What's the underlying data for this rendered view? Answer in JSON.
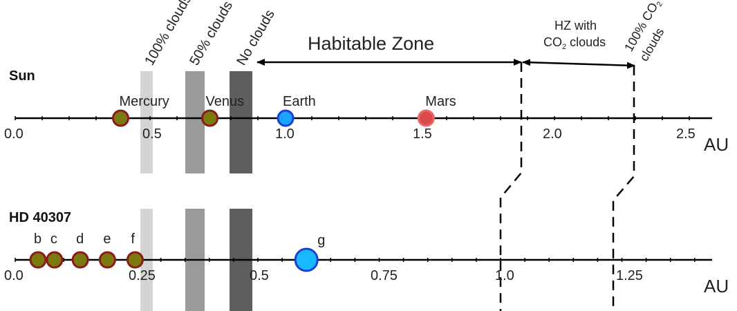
{
  "labels": {
    "cloud100": "100% clouds",
    "cloud50": "50% clouds",
    "cloud0": "No clouds",
    "hz": "Habitable Zone",
    "hzco2_line1": "HZ with",
    "hzco2_line2_a": "CO",
    "hzco2_line2_sub": "2",
    "hzco2_line2_b": " clouds",
    "co2_100_line1_a": "100% CO",
    "co2_100_line1_sub": "2",
    "co2_100_line2": "clouds",
    "unit_top": "AU",
    "unit_bottom": "AU"
  },
  "sun": {
    "name": "Sun",
    "ticks": [
      "0.0",
      "0.5",
      "1.0",
      "1.5",
      "2.0",
      "2.5"
    ],
    "planets": [
      {
        "name": "Mercury",
        "au": 0.39,
        "color": "#7a7a10",
        "stroke": "#8b1a1a",
        "size": "small"
      },
      {
        "name": "Venus",
        "au": 0.72,
        "color": "#7a7a10",
        "stroke": "#8b1a1a",
        "size": "small"
      },
      {
        "name": "Earth",
        "au": 1.0,
        "color": "#1aa3ff",
        "stroke": "#1a3fd6",
        "size": "small"
      },
      {
        "name": "Mars",
        "au": 1.52,
        "color": "#d94b4b",
        "stroke": "#e86868",
        "size": "small"
      }
    ]
  },
  "hd": {
    "name": "HD 40307",
    "ticks": [
      "0.0",
      "0.25",
      "0.5",
      "0.75",
      "1.0",
      "1.25"
    ],
    "planets": [
      {
        "name": "b",
        "au": 0.047,
        "color": "#7a7a10",
        "stroke": "#8b1a1a",
        "size": "small"
      },
      {
        "name": "c",
        "au": 0.081,
        "color": "#7a7a10",
        "stroke": "#8b1a1a",
        "size": "small"
      },
      {
        "name": "d",
        "au": 0.134,
        "color": "#7a7a10",
        "stroke": "#8b1a1a",
        "size": "small"
      },
      {
        "name": "e",
        "au": 0.19,
        "color": "#7a7a10",
        "stroke": "#8b1a1a",
        "size": "small"
      },
      {
        "name": "f",
        "au": 0.247,
        "color": "#7a7a10",
        "stroke": "#8b1a1a",
        "size": "small"
      },
      {
        "name": "g",
        "au": 0.6,
        "color": "#1ab8ff",
        "stroke": "#1a3fd6",
        "size": "large"
      }
    ]
  },
  "colors": {
    "band100": "#d4d4d4",
    "band50": "#9a9a9a",
    "band0": "#5e5e5e"
  }
}
